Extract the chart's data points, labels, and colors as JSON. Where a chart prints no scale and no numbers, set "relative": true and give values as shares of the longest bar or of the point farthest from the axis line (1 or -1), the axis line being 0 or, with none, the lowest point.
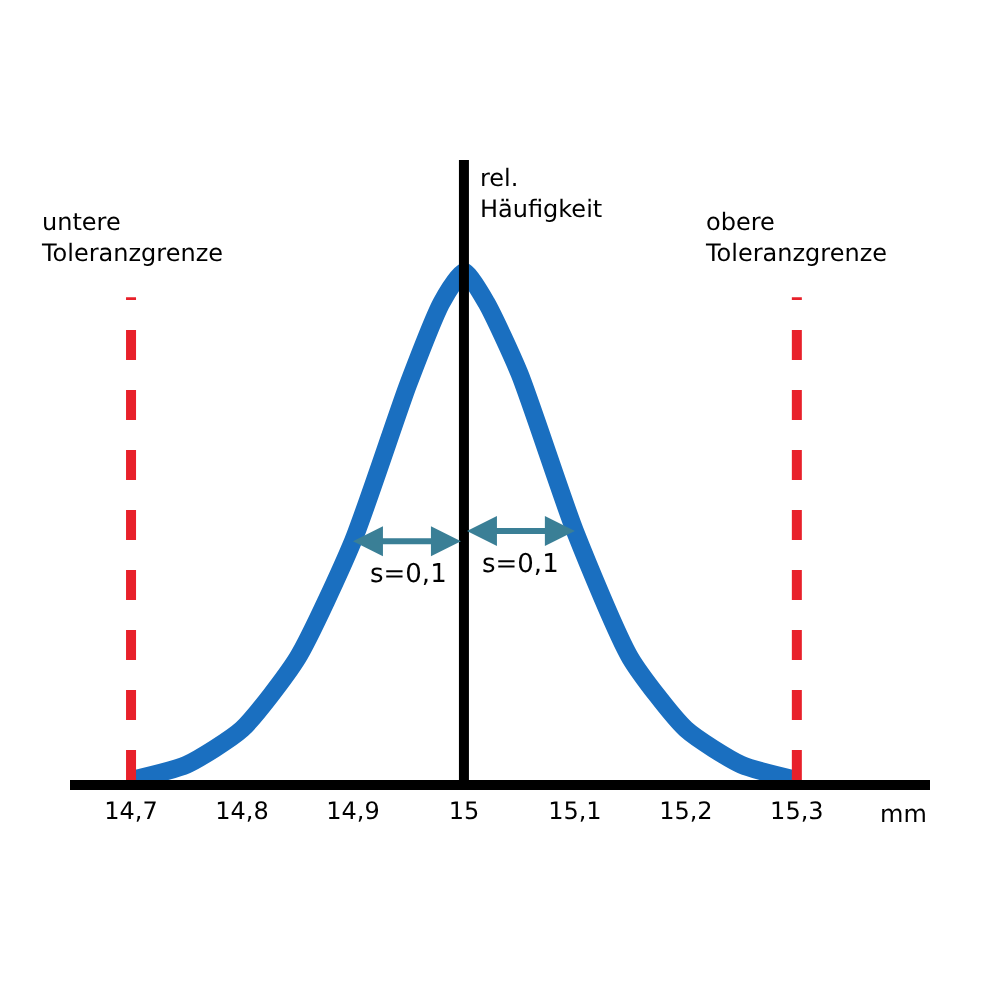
{
  "chart_data": {
    "type": "line",
    "relative": true,
    "xlabel": "mm",
    "ylabel": "rel.\nHäufigkeit",
    "x": [
      14.7,
      14.75,
      14.8,
      14.85,
      14.9,
      14.95,
      14.98,
      15.0,
      15.02,
      15.05,
      15.1,
      15.15,
      15.2,
      15.25,
      15.3
    ],
    "series": [
      {
        "color": "#1a6fc0",
        "values": [
          0,
          0.03,
          0.1,
          0.24,
          0.47,
          0.78,
          0.94,
          1,
          0.94,
          0.8,
          0.49,
          0.24,
          0.1,
          0.03,
          0
        ]
      }
    ],
    "xlim": [
      14.645,
      15.42
    ],
    "xticks": [
      {
        "value": 14.7,
        "label": "14,7"
      },
      {
        "value": 14.8,
        "label": "14,8"
      },
      {
        "value": 14.9,
        "label": "14,9"
      },
      {
        "value": 15,
        "label": "15"
      },
      {
        "value": 15.1,
        "label": "15,1"
      },
      {
        "value": 15.2,
        "label": "15,2"
      },
      {
        "value": 15.3,
        "label": "15,3"
      }
    ],
    "ref_lines": [
      {
        "axis": "x",
        "value": 14.7,
        "label": "untere\nToleranzgrenze",
        "color": "#e8202a",
        "line_style": "dashed"
      },
      {
        "axis": "x",
        "value": 15.3,
        "label": "obere\nToleranzgrenze",
        "color": "#e8202a",
        "line_style": "dashed"
      },
      {
        "axis": "x",
        "value": 15,
        "color": "#000000",
        "line_style": "solid"
      }
    ],
    "annotations": [
      {
        "text": "s=0,1",
        "x": 14.9,
        "y": 0.47
      },
      {
        "text": "s=0,1",
        "x": 15.1,
        "y": 0.49
      }
    ],
    "marker": "none",
    "line_style": "solid"
  }
}
